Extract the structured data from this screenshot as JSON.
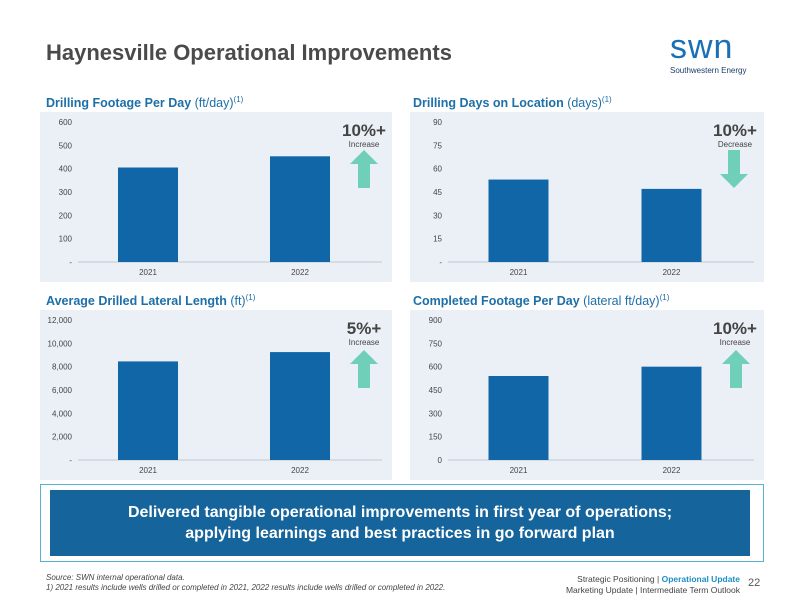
{
  "title": "Haynesville Operational Improvements",
  "logo": {
    "text": "swn",
    "tagline": "Southwestern Energy"
  },
  "colors": {
    "bar": "#1166a8",
    "panel_bg": "#eaf0f6",
    "arrow": "#6fcfb8",
    "title_blue": "#1d6fa8",
    "banner_bg": "#15649c"
  },
  "charts": [
    {
      "title_bold": "Drilling Footage Per Day",
      "title_unit": " (ft/day)",
      "title_note": "(1)",
      "change_pct": "10%+",
      "change_label": "Increase",
      "direction": "up"
    },
    {
      "title_bold": "Drilling Days on Location",
      "title_unit": " (days)",
      "title_note": "(1)",
      "change_pct": "10%+",
      "change_label": "Decrease",
      "direction": "down"
    },
    {
      "title_bold": "Average Drilled Lateral Length",
      "title_unit": " (ft)",
      "title_note": "(1)",
      "change_pct": "5%+",
      "change_label": "Increase",
      "direction": "up"
    },
    {
      "title_bold": "Completed Footage Per Day",
      "title_unit": " (lateral ft/day)",
      "title_note": "(1)",
      "change_pct": "10%+",
      "change_label": "Increase",
      "direction": "up"
    }
  ],
  "chart_data": [
    {
      "type": "bar",
      "categories": [
        "2021",
        "2022"
      ],
      "values": [
        405,
        453
      ],
      "ylim": [
        0,
        600
      ],
      "yticks": [
        "-",
        "100",
        "200",
        "300",
        "400",
        "500",
        "600"
      ],
      "ytick_values": [
        0,
        100,
        200,
        300,
        400,
        500,
        600
      ],
      "grid": false
    },
    {
      "type": "bar",
      "categories": [
        "2021",
        "2022"
      ],
      "values": [
        53,
        47
      ],
      "ylim": [
        0,
        90
      ],
      "yticks": [
        "-",
        "15",
        "30",
        "45",
        "60",
        "75",
        "90"
      ],
      "ytick_values": [
        0,
        15,
        30,
        45,
        60,
        75,
        90
      ],
      "grid": false
    },
    {
      "type": "bar",
      "categories": [
        "2021",
        "2022"
      ],
      "values": [
        8450,
        9250
      ],
      "ylim": [
        0,
        12000
      ],
      "yticks": [
        "-",
        "2,000",
        "4,000",
        "6,000",
        "8,000",
        "10,000",
        "12,000"
      ],
      "ytick_values": [
        0,
        2000,
        4000,
        6000,
        8000,
        10000,
        12000
      ],
      "grid": false
    },
    {
      "type": "bar",
      "categories": [
        "2021",
        "2022"
      ],
      "values": [
        540,
        600
      ],
      "ylim": [
        0,
        900
      ],
      "yticks": [
        "0",
        "150",
        "300",
        "450",
        "600",
        "750",
        "900"
      ],
      "ytick_values": [
        0,
        150,
        300,
        450,
        600,
        750,
        900
      ],
      "grid": false
    }
  ],
  "banner": {
    "line1": "Delivered tangible operational improvements in first year of operations;",
    "line2": "applying learnings and best practices in go forward plan"
  },
  "footnote": {
    "line1": "Source: SWN internal operational data.",
    "line2": "1) 2021 results include wells drilled or completed in 2021, 2022 results include wells drilled or completed in 2022."
  },
  "nav": {
    "item1": "Strategic Positioning",
    "sep": " | ",
    "item2": "Operational Update",
    "item3": "Marketing Update",
    "item4": "Intermediate Term Outlook"
  },
  "page_number": "22"
}
